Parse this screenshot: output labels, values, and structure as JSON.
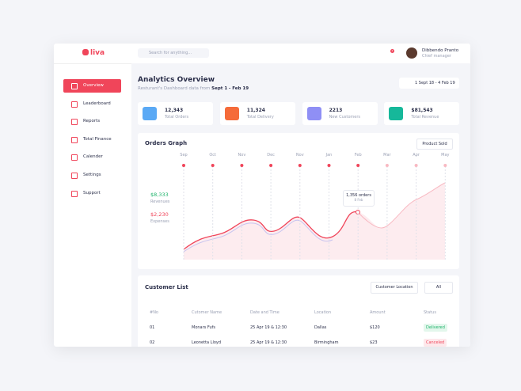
{
  "app": {
    "logo": "liva",
    "search": "Search for anything...",
    "badge": "2",
    "user": {
      "name": "Dibbendo Pranto",
      "role": "Chief manager"
    }
  },
  "sidebar": [
    "Overview",
    "Leaderboard",
    "Reports",
    "Total Finance",
    "Calender",
    "Settings",
    "Support"
  ],
  "header": {
    "title": "Analytics Overview",
    "subtitle": "Resturant's Dashboard data from",
    "range": "Sept 1 - Feb 19",
    "picker": "1 Sept 18 - 4 Feb 19"
  },
  "stats": [
    {
      "value": "12,343",
      "label": "Total Orders"
    },
    {
      "value": "11,324",
      "label": "Total Delivery"
    },
    {
      "value": "2213",
      "label": "New Customers"
    },
    {
      "value": "$81,543",
      "label": "Total Revenue"
    }
  ],
  "graph": {
    "title": "Orders Graph",
    "filter": "Product Sold",
    "months": [
      "Sep",
      "Oct",
      "Nov",
      "Dec",
      "Nov",
      "Jan",
      "Feb",
      "Mar",
      "Apr",
      "May"
    ],
    "revenue": {
      "value": "$8,333",
      "label": "Revenues"
    },
    "expense": {
      "value": "$2,230",
      "label": "Expenses"
    },
    "tooltip": {
      "value": "1,356 orders",
      "date": "8 Feb"
    }
  },
  "customers": {
    "title": "Customer List",
    "location": "Customer Location",
    "filter": "All",
    "columns": [
      "#No",
      "Cutomer Name",
      "Date and Time",
      "Location",
      "Amount",
      "Status"
    ],
    "rows": [
      [
        "01",
        "Monars Fufs",
        "25 Apr 19 & 12:30",
        "Dallas",
        "$120",
        "Delivered"
      ],
      [
        "02",
        "Leonetta Lloyd",
        "25 Apr 19 & 12:30",
        "Birmingham",
        "$23",
        "Canceled"
      ]
    ]
  }
}
